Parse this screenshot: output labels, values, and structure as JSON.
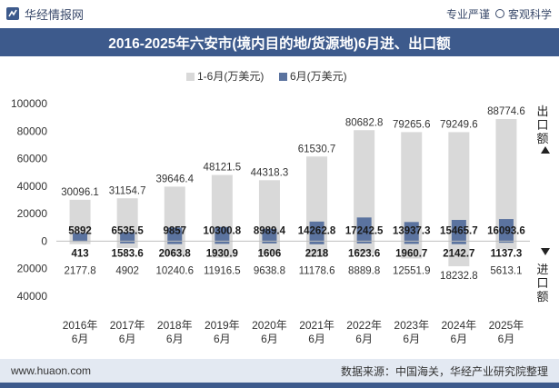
{
  "header": {
    "brand": "华经情报网",
    "tagline_left": "专业严谨",
    "tagline_right": "客观科学"
  },
  "title": "2016-2025年六安市(境内目的地/货源地)6月进、出口额",
  "footer": {
    "url": "www.huaon.com",
    "source": "数据来源：中国海关，华经产业研究院整理"
  },
  "side_labels": {
    "export": "出口额",
    "import": "进口额"
  },
  "colors": {
    "cum_bar": "#d9d9d9",
    "month_bar": "#5b739f",
    "title_bg": "#3d5a8c"
  },
  "chart_data": {
    "type": "bar",
    "categories": [
      "2016年\n6月",
      "2017年\n6月",
      "2018年\n6月",
      "2019年\n6月",
      "2020年\n6月",
      "2021年\n6月",
      "2022年\n6月",
      "2023年\n6月",
      "2024年\n6月",
      "2025年\n6月"
    ],
    "legend": [
      "1-6月(万美元)",
      "6月(万美元)"
    ],
    "ylim": [
      -40000,
      100000
    ],
    "yticks": [
      100000,
      80000,
      60000,
      40000,
      20000,
      0,
      -20000,
      -40000
    ],
    "ytick_labels": [
      "100000",
      "80000",
      "60000",
      "40000",
      "20000",
      "0",
      "20000",
      "40000"
    ],
    "series": [
      {
        "name": "1-6月(万美元)",
        "group": "export",
        "values": [
          30096.1,
          31154.7,
          39646.4,
          48121.5,
          44318.3,
          61530.7,
          80682.8,
          79265.6,
          79249.6,
          88774.6
        ]
      },
      {
        "name": "6月(万美元)",
        "group": "export",
        "values": [
          5892,
          6535.5,
          9857,
          10300.8,
          8989.4,
          14262.8,
          17242.5,
          13937.3,
          15465.7,
          16093.6
        ]
      },
      {
        "name": "1-6月(万美元)",
        "group": "import",
        "values": [
          2177.8,
          4902,
          10240.6,
          11916.5,
          9638.8,
          11178.6,
          8889.8,
          12551.9,
          18232.8,
          5613.1
        ]
      },
      {
        "name": "6月(万美元)",
        "group": "import",
        "values": [
          413,
          1583.6,
          2063.8,
          1930.9,
          1606,
          2218,
          1623.6,
          1960.7,
          2142.7,
          1137.3
        ]
      }
    ],
    "export_cum_labels": [
      "30096.1",
      "31154.7",
      "39646.4",
      "48121.5",
      "44318.3",
      "61530.7",
      "80682.8",
      "79265.6",
      "79249.6",
      "88774.6"
    ],
    "export_month_labels": [
      "5892",
      "6535.5",
      "9857",
      "10300.8",
      "8989.4",
      "14262.8",
      "17242.5",
      "13937.3",
      "15465.7",
      "16093.6"
    ],
    "import_month_labels": [
      "413",
      "1583.6",
      "2063.8",
      "1930.9",
      "1606",
      "2218",
      "1623.6",
      "1960.7",
      "2142.7",
      "1137.3"
    ],
    "import_cum_labels": [
      "2177.8",
      "4902",
      "10240.6",
      "11916.5",
      "9638.8",
      "11178.6",
      "8889.8",
      "12551.9",
      "18232.8",
      "5613.1"
    ],
    "grid": false,
    "legend_position": "top"
  }
}
